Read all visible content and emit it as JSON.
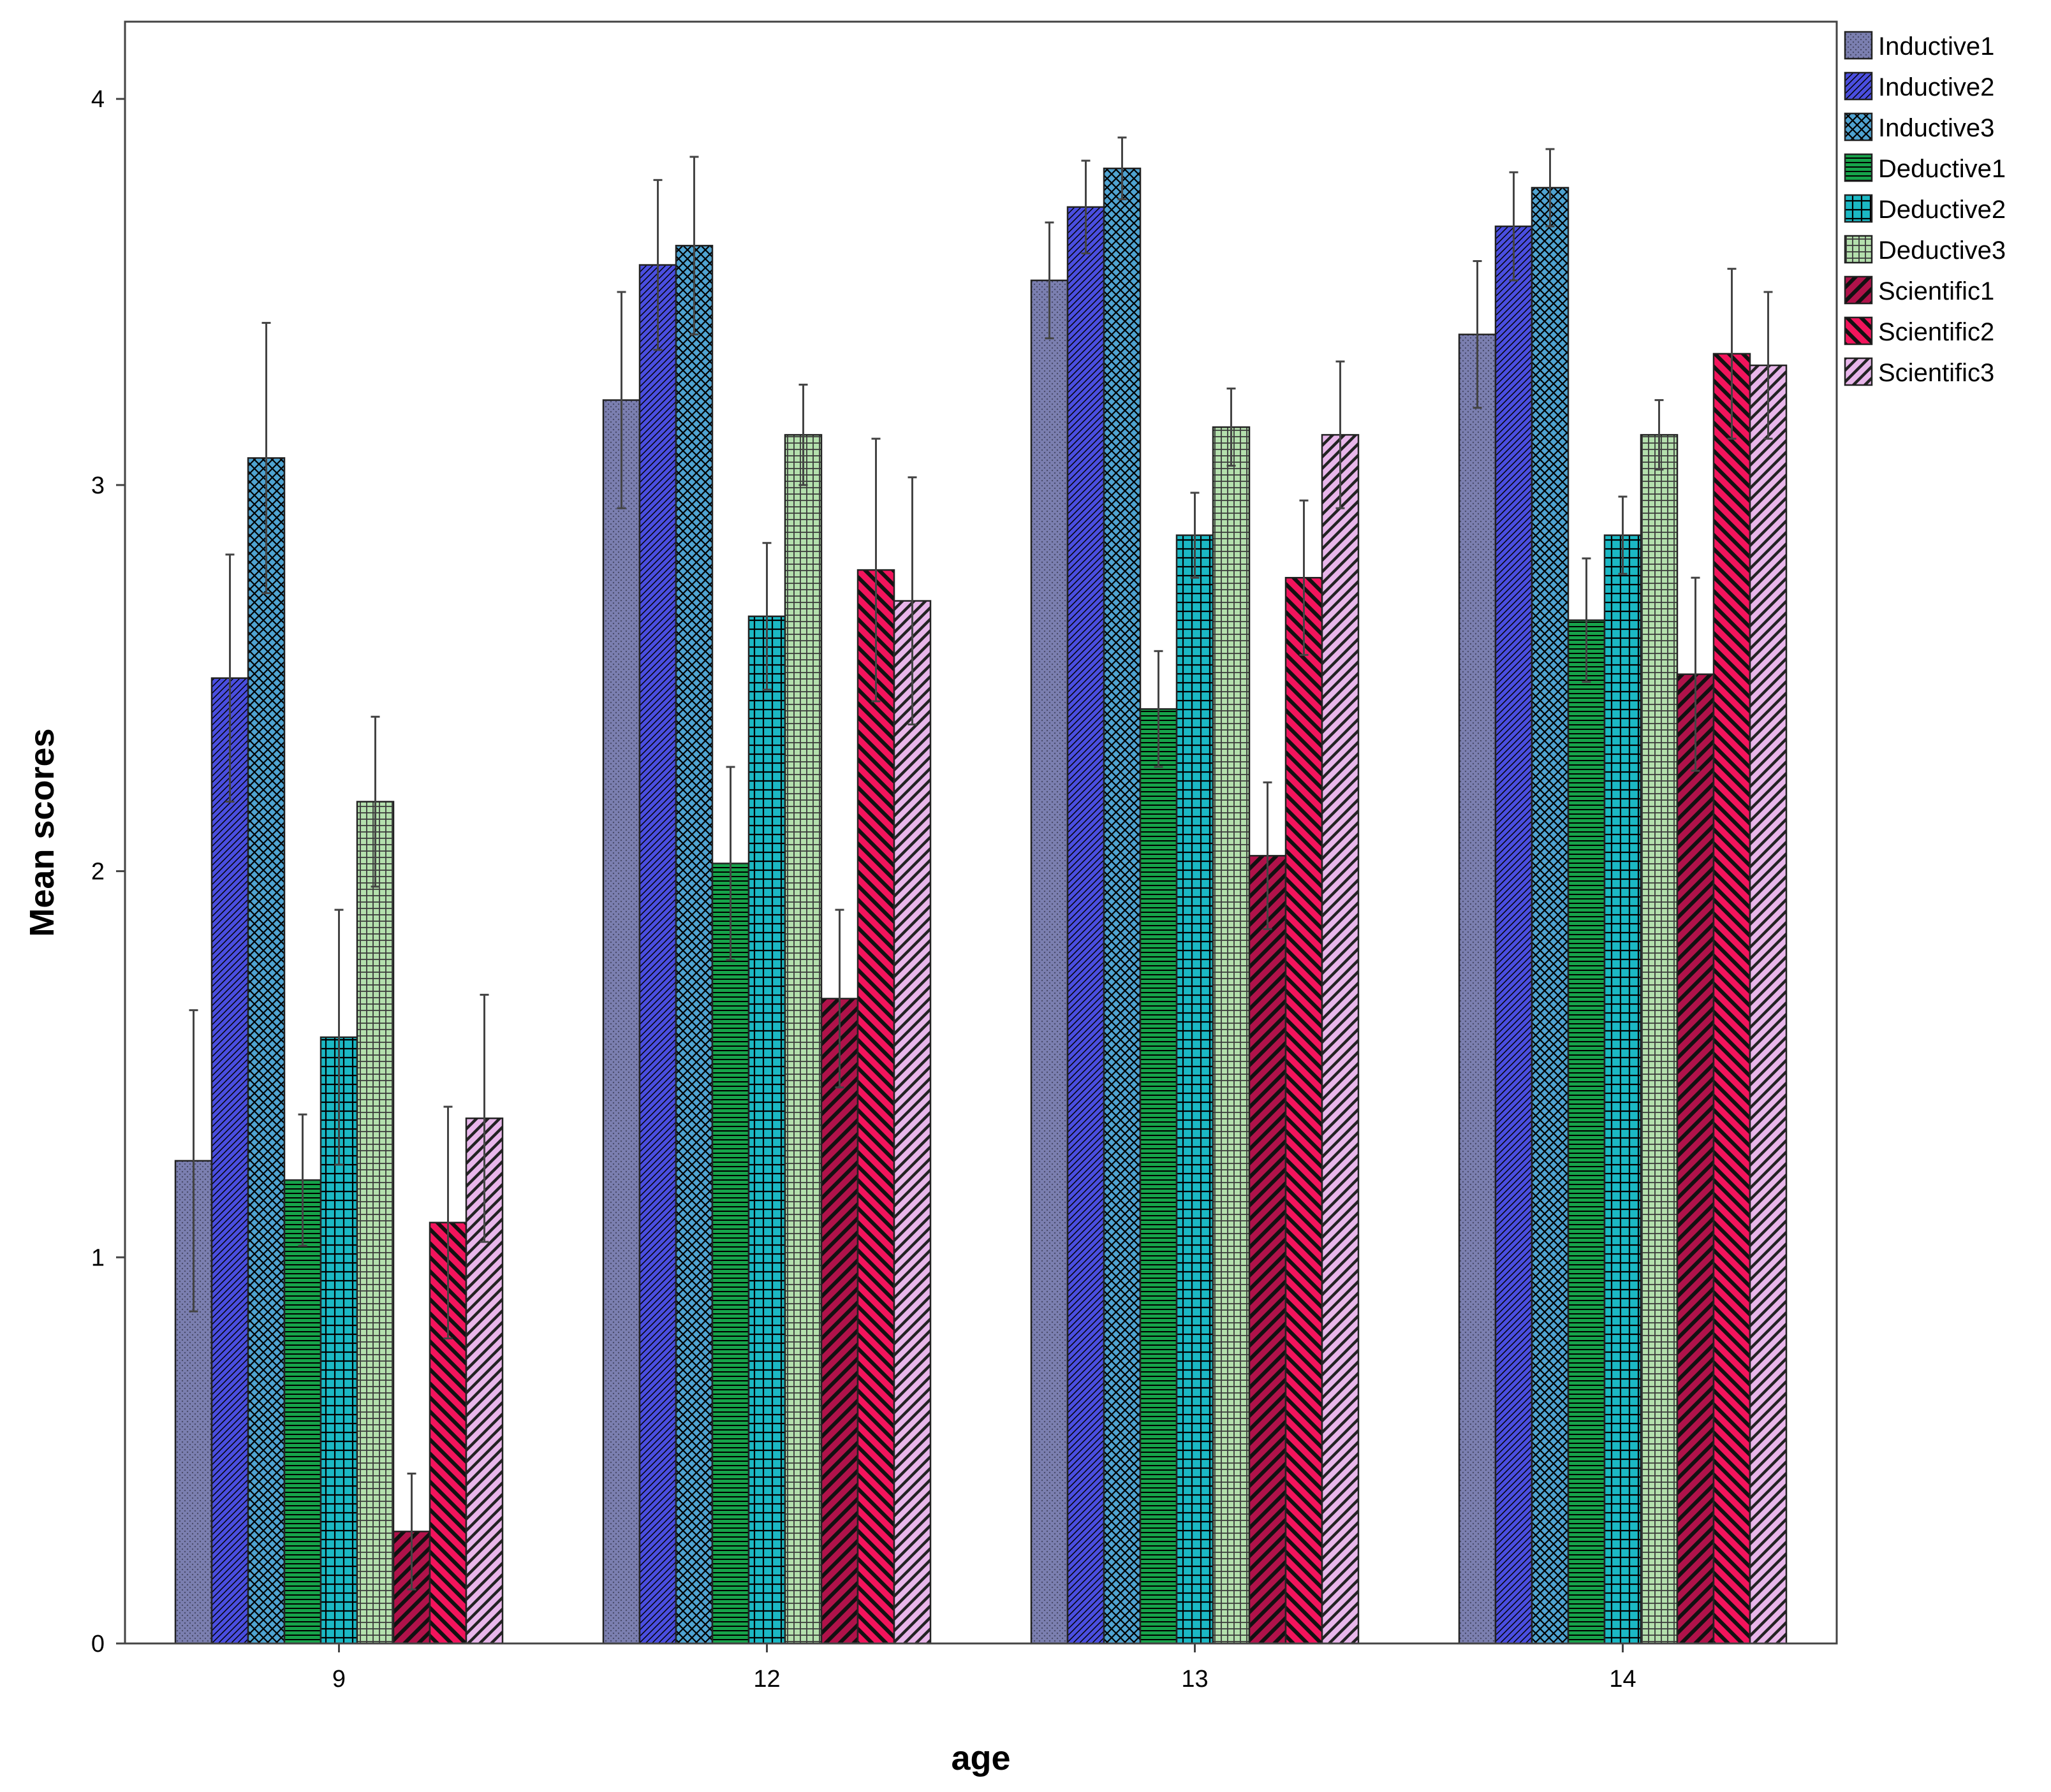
{
  "chart_data": {
    "type": "bar",
    "title": "",
    "xlabel": "age",
    "ylabel": "Mean scores",
    "ylim": [
      0,
      4.2
    ],
    "yticks": [
      0,
      1,
      2,
      3,
      4
    ],
    "categories": [
      "9",
      "12",
      "13",
      "14"
    ],
    "legend_position": "top-right",
    "error_bars": true,
    "series": [
      {
        "name": "Inductive1",
        "color": "#7b7fb0",
        "pattern": "dots",
        "values": [
          1.25,
          3.22,
          3.53,
          3.39
        ],
        "errors": [
          0.39,
          0.28,
          0.15,
          0.19
        ]
      },
      {
        "name": "Inductive2",
        "color": "#4a4ee0",
        "pattern": "diag-fine",
        "values": [
          2.5,
          3.57,
          3.72,
          3.67
        ],
        "errors": [
          0.32,
          0.22,
          0.12,
          0.14
        ]
      },
      {
        "name": "Inductive3",
        "color": "#4fa3d1",
        "pattern": "crosshatch",
        "values": [
          3.07,
          3.62,
          3.82,
          3.77
        ],
        "errors": [
          0.35,
          0.23,
          0.08,
          0.1
        ]
      },
      {
        "name": "Deductive1",
        "color": "#17a34a",
        "pattern": "horizontal",
        "values": [
          1.2,
          2.02,
          2.42,
          2.65
        ],
        "errors": [
          0.17,
          0.25,
          0.15,
          0.16
        ]
      },
      {
        "name": "Deductive2",
        "color": "#1bb8c4",
        "pattern": "grid",
        "values": [
          1.57,
          2.66,
          2.87,
          2.87
        ],
        "errors": [
          0.33,
          0.19,
          0.11,
          0.1
        ]
      },
      {
        "name": "Deductive3",
        "color": "#b4e0ad",
        "pattern": "grid-fine",
        "values": [
          2.18,
          3.13,
          3.15,
          3.13
        ],
        "errors": [
          0.22,
          0.13,
          0.1,
          0.09
        ]
      },
      {
        "name": "Scientific1",
        "color": "#b0124a",
        "pattern": "diag-bold",
        "values": [
          0.29,
          1.67,
          2.04,
          2.51
        ],
        "errors": [
          0.15,
          0.23,
          0.19,
          0.25
        ]
      },
      {
        "name": "Scientific2",
        "color": "#f2145c",
        "pattern": "diag-bold-r",
        "values": [
          1.09,
          2.78,
          2.76,
          3.34
        ],
        "errors": [
          0.3,
          0.34,
          0.2,
          0.22
        ]
      },
      {
        "name": "Scientific3",
        "color": "#e8b6ea",
        "pattern": "diag-med",
        "values": [
          1.36,
          2.7,
          3.13,
          3.31
        ],
        "errors": [
          0.32,
          0.32,
          0.19,
          0.19
        ]
      }
    ]
  }
}
